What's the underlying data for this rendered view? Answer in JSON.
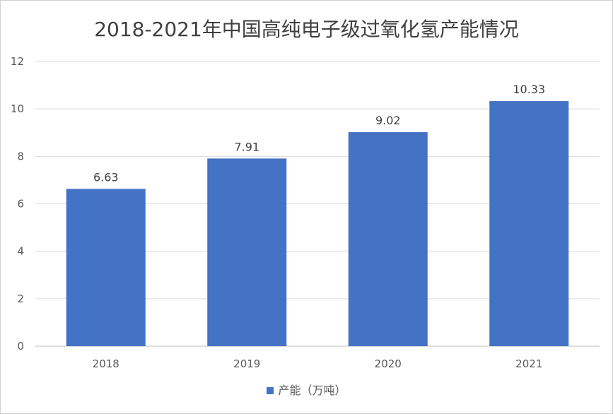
{
  "chart_data": {
    "type": "bar",
    "title": "2018-2021年中国高纯电子级过氧化氢产能情况",
    "categories": [
      "2018",
      "2019",
      "2020",
      "2021"
    ],
    "series": [
      {
        "name": "产能（万吨）",
        "values": [
          6.63,
          7.91,
          9.02,
          10.33
        ],
        "value_labels": [
          "6.63",
          "7.91",
          "9.02",
          "10.33"
        ],
        "color": "#4472c4"
      }
    ],
    "yticks": [
      "0",
      "2",
      "4",
      "6",
      "8",
      "10",
      "12"
    ],
    "ylim": [
      0,
      12
    ],
    "grid": true,
    "legend_position": "bottom"
  }
}
